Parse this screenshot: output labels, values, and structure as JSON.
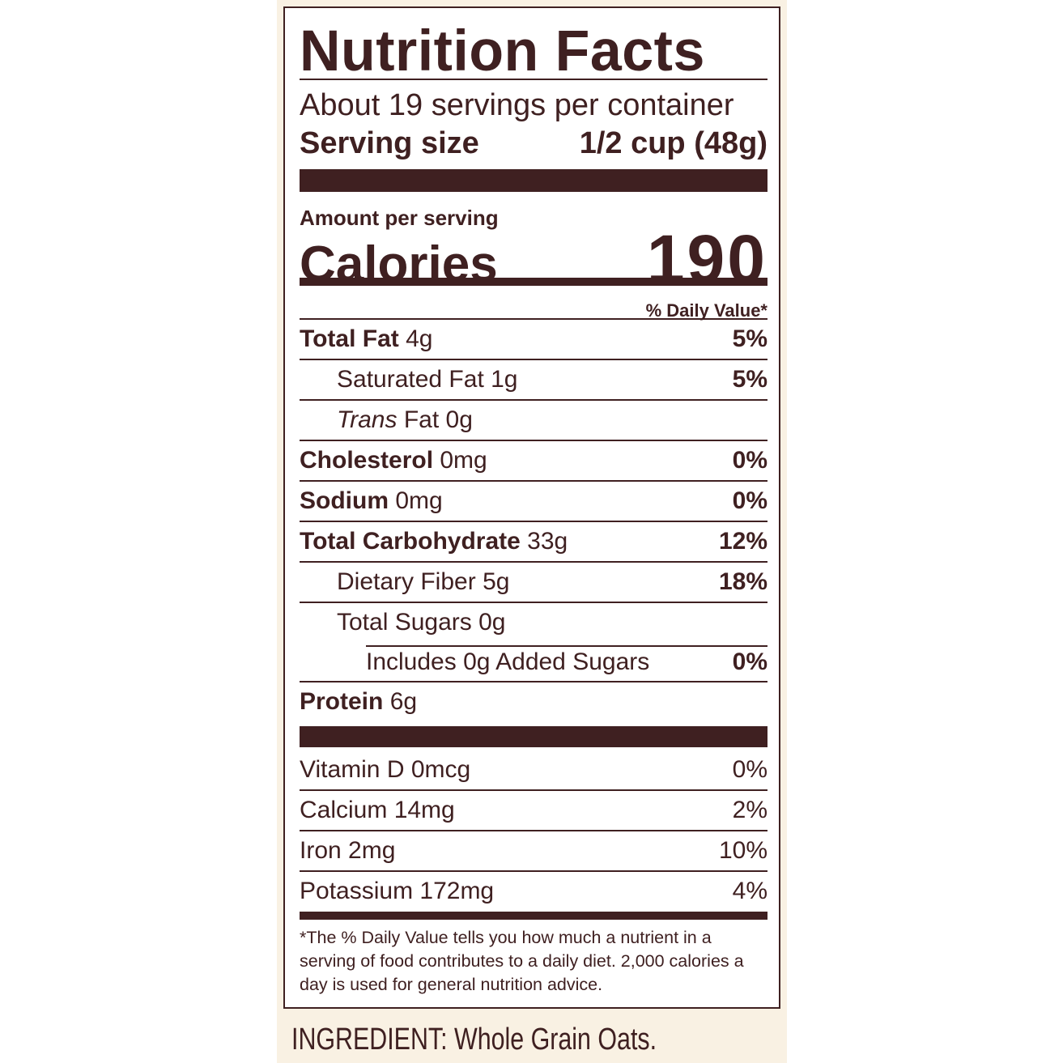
{
  "label": {
    "title": "Nutrition Facts",
    "servings_per_container": "About 19 servings per container",
    "serving_size_label": "Serving size",
    "serving_size_value": "1/2 cup (48g)",
    "amount_per_serving": "Amount per serving",
    "calories_label": "Calories",
    "calories_value": "190",
    "daily_value_header": "% Daily Value*",
    "nutrients": [
      {
        "name": "Total Fat",
        "amount": "4g",
        "dv": "5%"
      },
      {
        "name": "Saturated Fat",
        "amount": "1g",
        "dv": "5%"
      },
      {
        "name": "Trans",
        "name_rest": "Fat",
        "amount": "0g",
        "dv": ""
      },
      {
        "name": "Cholesterol",
        "amount": "0mg",
        "dv": "0%"
      },
      {
        "name": "Sodium",
        "amount": "0mg",
        "dv": "0%"
      },
      {
        "name": "Total Carbohydrate",
        "amount": "33g",
        "dv": "12%"
      },
      {
        "name": "Dietary Fiber",
        "amount": "5g",
        "dv": "18%"
      },
      {
        "name": "Total Sugars",
        "amount": "0g",
        "dv": ""
      },
      {
        "name": "Includes 0g Added Sugars",
        "amount": "",
        "dv": "0%"
      },
      {
        "name": "Protein",
        "amount": "6g",
        "dv": ""
      }
    ],
    "vitamins": [
      {
        "name": "Vitamin D 0mcg",
        "dv": "0%"
      },
      {
        "name": "Calcium 14mg",
        "dv": "2%"
      },
      {
        "name": "Iron 2mg",
        "dv": "10%"
      },
      {
        "name": "Potassium 172mg",
        "dv": "4%"
      }
    ],
    "footnote": "*The % Daily Value tells you how much a nutrient in a serving of food contributes to a daily diet. 2,000 calories a day is used for general nutrition advice."
  },
  "ingredients": "INGREDIENT: Whole Grain Oats.",
  "colors": {
    "ink": "#3f2021",
    "background": "#f9f1e3"
  }
}
